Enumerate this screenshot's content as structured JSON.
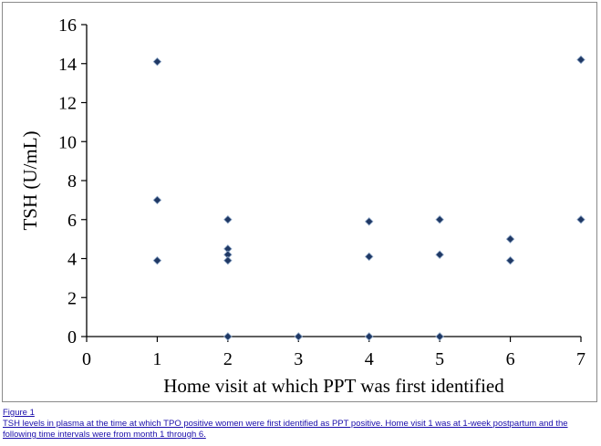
{
  "chart_data": {
    "type": "scatter",
    "xlabel": "Home visit at which PPT was first identified",
    "ylabel": "TSH (U/mL)",
    "xlim": [
      0,
      7
    ],
    "ylim": [
      0,
      16
    ],
    "xticks": [
      0,
      1,
      2,
      3,
      4,
      5,
      6,
      7
    ],
    "yticks": [
      0,
      2,
      4,
      6,
      8,
      10,
      12,
      14,
      16
    ],
    "grid": false,
    "marker": "diamond",
    "marker_color": "#1f3864",
    "points": [
      {
        "x": 1,
        "y": 14.1
      },
      {
        "x": 1,
        "y": 7.0
      },
      {
        "x": 1,
        "y": 3.9
      },
      {
        "x": 2,
        "y": 6.0
      },
      {
        "x": 2,
        "y": 4.5
      },
      {
        "x": 2,
        "y": 4.2
      },
      {
        "x": 2,
        "y": 3.9
      },
      {
        "x": 2,
        "y": 0.0
      },
      {
        "x": 3,
        "y": 0.0
      },
      {
        "x": 4,
        "y": 5.9
      },
      {
        "x": 4,
        "y": 4.1
      },
      {
        "x": 4,
        "y": 0.0
      },
      {
        "x": 5,
        "y": 6.0
      },
      {
        "x": 5,
        "y": 4.2
      },
      {
        "x": 5,
        "y": 0.0
      },
      {
        "x": 6,
        "y": 5.0
      },
      {
        "x": 6,
        "y": 3.9
      },
      {
        "x": 7,
        "y": 14.2
      },
      {
        "x": 7,
        "y": 6.0
      }
    ]
  },
  "caption": {
    "figure_label": "Figure 1",
    "text": "TSH levels in plasma at the time at which TPO positive women were first identified as PPT positive. Home visit 1 was at 1-week postpartum and the following time intervals were from month 1 through 6."
  }
}
